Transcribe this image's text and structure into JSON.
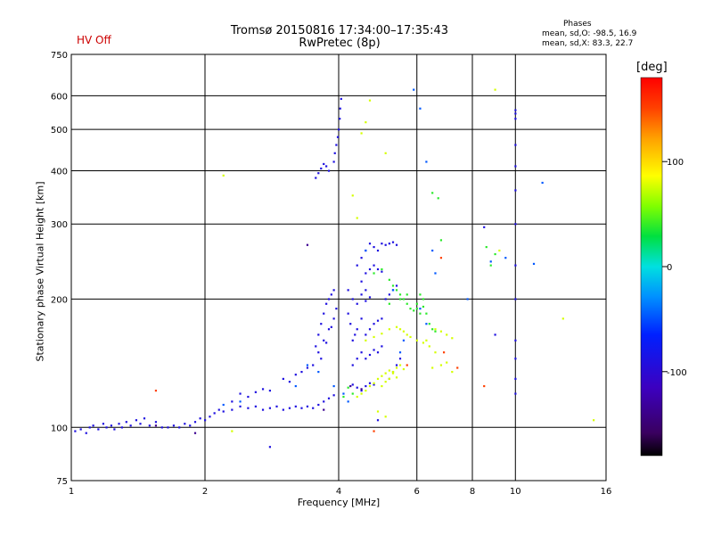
{
  "header": {
    "status": "HV Off",
    "title_line1": "Tromsø 20150816 17:34:00–17:35:43",
    "title_line2": "RwPretec (8p)",
    "stats_title": "Phases",
    "stats_o": "mean, sd,O: -98.5, 16.9",
    "stats_x": "mean, sd,X:  83.3, 22.7"
  },
  "colors": {
    "axes": "#000000",
    "grid": "#000000",
    "status_text": "#cc0000"
  },
  "chart_data": {
    "type": "scatter",
    "title": "Tromsø 20150816 17:34:00–17:35:43",
    "subtitle": "RwPretec (8p)",
    "xlabel": "Frequency [MHz]",
    "ylabel": "Stationary phase Virtual Height [km]",
    "xscale": "log",
    "yscale": "log",
    "xlim": [
      1,
      16
    ],
    "ylim": [
      75,
      750
    ],
    "x_ticks": [
      1,
      2,
      4,
      6,
      8,
      10,
      16
    ],
    "y_ticks": [
      75,
      100,
      200,
      300,
      400,
      500,
      600,
      750
    ],
    "grid": true,
    "colorbar": {
      "label": "[deg]",
      "range": [
        -180,
        180
      ],
      "ticks": [
        100,
        0,
        -100
      ],
      "colormap": "rainbow"
    },
    "series": [
      {
        "color_value": -100,
        "points": [
          [
            1.02,
            98
          ],
          [
            1.05,
            99
          ],
          [
            1.08,
            97
          ],
          [
            1.1,
            100
          ],
          [
            1.12,
            101
          ],
          [
            1.15,
            99
          ],
          [
            1.18,
            102
          ],
          [
            1.2,
            100
          ],
          [
            1.23,
            101
          ],
          [
            1.25,
            99
          ],
          [
            1.28,
            102
          ],
          [
            1.3,
            100
          ],
          [
            1.33,
            103
          ],
          [
            1.36,
            101
          ],
          [
            1.4,
            104
          ],
          [
            1.43,
            102
          ],
          [
            1.46,
            105
          ],
          [
            1.5,
            101
          ],
          [
            1.55,
            103
          ],
          [
            1.6,
            100
          ],
          [
            1.65,
            100
          ],
          [
            1.7,
            101
          ],
          [
            1.75,
            100
          ],
          [
            1.8,
            102
          ],
          [
            1.85,
            101
          ],
          [
            1.9,
            103
          ],
          [
            1.95,
            105
          ],
          [
            2.0,
            104
          ],
          [
            2.05,
            106
          ],
          [
            2.1,
            108
          ],
          [
            2.15,
            110
          ],
          [
            2.2,
            109
          ],
          [
            2.3,
            110
          ],
          [
            2.4,
            112
          ],
          [
            2.5,
            111
          ],
          [
            2.6,
            112
          ],
          [
            2.7,
            110
          ],
          [
            2.8,
            111
          ],
          [
            2.9,
            112
          ],
          [
            3.0,
            110
          ],
          [
            3.1,
            111
          ],
          [
            3.2,
            112
          ],
          [
            3.3,
            111
          ],
          [
            3.4,
            112
          ],
          [
            3.5,
            111
          ],
          [
            3.6,
            113
          ],
          [
            3.7,
            115
          ],
          [
            3.8,
            117
          ],
          [
            3.9,
            119
          ],
          [
            2.5,
            118
          ],
          [
            2.6,
            121
          ],
          [
            2.7,
            123
          ],
          [
            2.8,
            122
          ],
          [
            2.3,
            115
          ],
          [
            2.4,
            120
          ],
          [
            3.0,
            130
          ],
          [
            3.1,
            128
          ],
          [
            3.2,
            133
          ],
          [
            3.3,
            135
          ],
          [
            3.4,
            138
          ],
          [
            3.5,
            140
          ],
          [
            3.55,
            155
          ],
          [
            3.6,
            165
          ],
          [
            3.65,
            175
          ],
          [
            3.7,
            185
          ],
          [
            3.75,
            195
          ],
          [
            3.8,
            200
          ],
          [
            3.85,
            205
          ],
          [
            3.9,
            210
          ],
          [
            3.6,
            150
          ],
          [
            3.7,
            160
          ],
          [
            3.8,
            170
          ],
          [
            3.9,
            180
          ],
          [
            3.65,
            145
          ],
          [
            3.75,
            158
          ],
          [
            3.85,
            172
          ],
          [
            3.95,
            190
          ],
          [
            3.55,
            385
          ],
          [
            3.6,
            395
          ],
          [
            3.65,
            405
          ],
          [
            3.7,
            415
          ],
          [
            3.75,
            410
          ],
          [
            3.8,
            400
          ],
          [
            3.9,
            420
          ],
          [
            3.92,
            440
          ],
          [
            3.95,
            460
          ],
          [
            3.98,
            480
          ],
          [
            4.0,
            500
          ],
          [
            4.02,
            530
          ],
          [
            4.03,
            560
          ],
          [
            4.05,
            590
          ],
          [
            4.3,
            160
          ],
          [
            4.4,
            170
          ],
          [
            4.5,
            180
          ],
          [
            4.6,
            165
          ],
          [
            4.7,
            170
          ],
          [
            4.8,
            175
          ],
          [
            4.9,
            178
          ],
          [
            5.0,
            180
          ],
          [
            4.3,
            140
          ],
          [
            4.4,
            145
          ],
          [
            4.5,
            150
          ],
          [
            4.6,
            145
          ],
          [
            4.7,
            148
          ],
          [
            4.8,
            152
          ],
          [
            4.9,
            150
          ],
          [
            5.0,
            155
          ],
          [
            4.2,
            210
          ],
          [
            4.3,
            200
          ],
          [
            4.4,
            195
          ],
          [
            4.5,
            205
          ],
          [
            4.6,
            198
          ],
          [
            4.7,
            202
          ],
          [
            4.4,
            240
          ],
          [
            4.5,
            250
          ],
          [
            4.6,
            260
          ],
          [
            4.7,
            270
          ],
          [
            4.8,
            265
          ],
          [
            4.9,
            260
          ],
          [
            4.6,
            230
          ],
          [
            4.7,
            235
          ],
          [
            4.8,
            240
          ],
          [
            4.9,
            235
          ],
          [
            5.0,
            232
          ],
          [
            5.0,
            270
          ],
          [
            5.1,
            268
          ],
          [
            5.2,
            270
          ],
          [
            5.3,
            272
          ],
          [
            5.4,
            268
          ],
          [
            5.1,
            200
          ],
          [
            5.2,
            205
          ],
          [
            5.3,
            210
          ],
          [
            5.4,
            215
          ],
          [
            5.2,
            130
          ],
          [
            5.3,
            135
          ],
          [
            5.4,
            140
          ],
          [
            5.5,
            145
          ],
          [
            4.3,
            126
          ],
          [
            4.4,
            124
          ],
          [
            4.5,
            122
          ],
          [
            4.6,
            125
          ],
          [
            4.7,
            127
          ],
          [
            4.8,
            126
          ],
          [
            4.5,
            220
          ],
          [
            4.6,
            210
          ],
          [
            4.2,
            185
          ],
          [
            4.25,
            175
          ],
          [
            4.35,
            165
          ],
          [
            10.0,
            545
          ],
          [
            10.0,
            555
          ],
          [
            10.0,
            530
          ],
          [
            10.0,
            460
          ],
          [
            10.0,
            410
          ],
          [
            10.0,
            360
          ],
          [
            10.0,
            300
          ],
          [
            10.0,
            240
          ],
          [
            10.0,
            200
          ],
          [
            10.0,
            160
          ],
          [
            10.0,
            145
          ],
          [
            10.0,
            130
          ],
          [
            10.0,
            120
          ],
          [
            8.5,
            295
          ],
          [
            9.0,
            165
          ],
          [
            2.8,
            90
          ],
          [
            4.9,
            104
          ]
        ]
      },
      {
        "color_value": -140,
        "points": [
          [
            1.55,
            101
          ],
          [
            1.9,
            97
          ],
          [
            3.4,
            268
          ],
          [
            3.7,
            110
          ],
          [
            4.25,
            125
          ],
          [
            4.5,
            123
          ]
        ]
      },
      {
        "color_value": -60,
        "points": [
          [
            2.2,
            113
          ],
          [
            2.4,
            115
          ],
          [
            3.2,
            125
          ],
          [
            3.4,
            140
          ],
          [
            3.6,
            135
          ],
          [
            3.9,
            125
          ],
          [
            4.1,
            120
          ],
          [
            4.2,
            115
          ],
          [
            4.6,
            260
          ],
          [
            5.3,
            210
          ],
          [
            5.9,
            620
          ],
          [
            6.1,
            560
          ],
          [
            6.3,
            420
          ],
          [
            6.5,
            260
          ],
          [
            6.6,
            230
          ],
          [
            7.8,
            200
          ],
          [
            8.8,
            245
          ],
          [
            9.5,
            250
          ],
          [
            11.0,
            242
          ],
          [
            11.5,
            375
          ],
          [
            5.5,
            150
          ],
          [
            5.6,
            160
          ],
          [
            6.1,
            190
          ],
          [
            6.3,
            175
          ]
        ]
      },
      {
        "color_value": 80,
        "points": [
          [
            4.4,
            118
          ],
          [
            4.5,
            120
          ],
          [
            4.6,
            122
          ],
          [
            4.7,
            125
          ],
          [
            4.8,
            127
          ],
          [
            4.9,
            130
          ],
          [
            5.0,
            132
          ],
          [
            5.1,
            134
          ],
          [
            5.2,
            136
          ],
          [
            5.3,
            135
          ],
          [
            5.4,
            138
          ],
          [
            5.5,
            140
          ],
          [
            5.6,
            137
          ],
          [
            5.0,
            125
          ],
          [
            5.1,
            128
          ],
          [
            5.2,
            130
          ],
          [
            5.3,
            134
          ],
          [
            5.4,
            131
          ],
          [
            4.6,
            160
          ],
          [
            4.8,
            163
          ],
          [
            5.0,
            166
          ],
          [
            5.2,
            170
          ],
          [
            5.4,
            172
          ],
          [
            5.5,
            170
          ],
          [
            5.6,
            168
          ],
          [
            5.7,
            165
          ],
          [
            5.8,
            163
          ],
          [
            6.0,
            160
          ],
          [
            6.2,
            158
          ],
          [
            6.4,
            155
          ],
          [
            6.6,
            170
          ],
          [
            6.8,
            168
          ],
          [
            7.0,
            165
          ],
          [
            7.2,
            162
          ],
          [
            6.5,
            138
          ],
          [
            6.8,
            140
          ],
          [
            7.0,
            142
          ],
          [
            7.2,
            135
          ],
          [
            4.3,
            350
          ],
          [
            4.5,
            490
          ],
          [
            4.6,
            520
          ],
          [
            4.7,
            585
          ],
          [
            5.1,
            440
          ],
          [
            4.4,
            310
          ],
          [
            6.3,
            160
          ],
          [
            6.6,
            150
          ],
          [
            9.0,
            620
          ],
          [
            9.2,
            260
          ],
          [
            12.8,
            180
          ],
          [
            15.0,
            104
          ],
          [
            2.3,
            98
          ],
          [
            2.2,
            390
          ],
          [
            4.9,
            109
          ],
          [
            5.1,
            106
          ]
        ]
      },
      {
        "color_value": 40,
        "points": [
          [
            4.8,
            230
          ],
          [
            5.0,
            235
          ],
          [
            5.2,
            222
          ],
          [
            5.4,
            210
          ],
          [
            5.5,
            205
          ],
          [
            5.6,
            200
          ],
          [
            5.7,
            195
          ],
          [
            5.8,
            190
          ],
          [
            5.9,
            188
          ],
          [
            6.0,
            190
          ],
          [
            6.1,
            185
          ],
          [
            6.2,
            192
          ],
          [
            6.3,
            185
          ],
          [
            6.4,
            175
          ],
          [
            6.5,
            170
          ],
          [
            6.6,
            168
          ],
          [
            5.3,
            215
          ],
          [
            5.5,
            200
          ],
          [
            5.7,
            205
          ],
          [
            5.2,
            195
          ],
          [
            6.7,
            345
          ],
          [
            6.5,
            355
          ],
          [
            6.8,
            275
          ],
          [
            8.6,
            265
          ],
          [
            8.8,
            240
          ],
          [
            9.0,
            255
          ],
          [
            4.1,
            118
          ],
          [
            4.2,
            124
          ],
          [
            4.3,
            120
          ],
          [
            6.2,
            200
          ],
          [
            6.1,
            205
          ],
          [
            6.0,
            195
          ]
        ]
      },
      {
        "color_value": 150,
        "points": [
          [
            1.55,
            122
          ],
          [
            4.8,
            98
          ],
          [
            5.7,
            140
          ],
          [
            6.9,
            150
          ],
          [
            7.4,
            138
          ],
          [
            8.5,
            125
          ],
          [
            6.8,
            250
          ]
        ]
      }
    ]
  }
}
